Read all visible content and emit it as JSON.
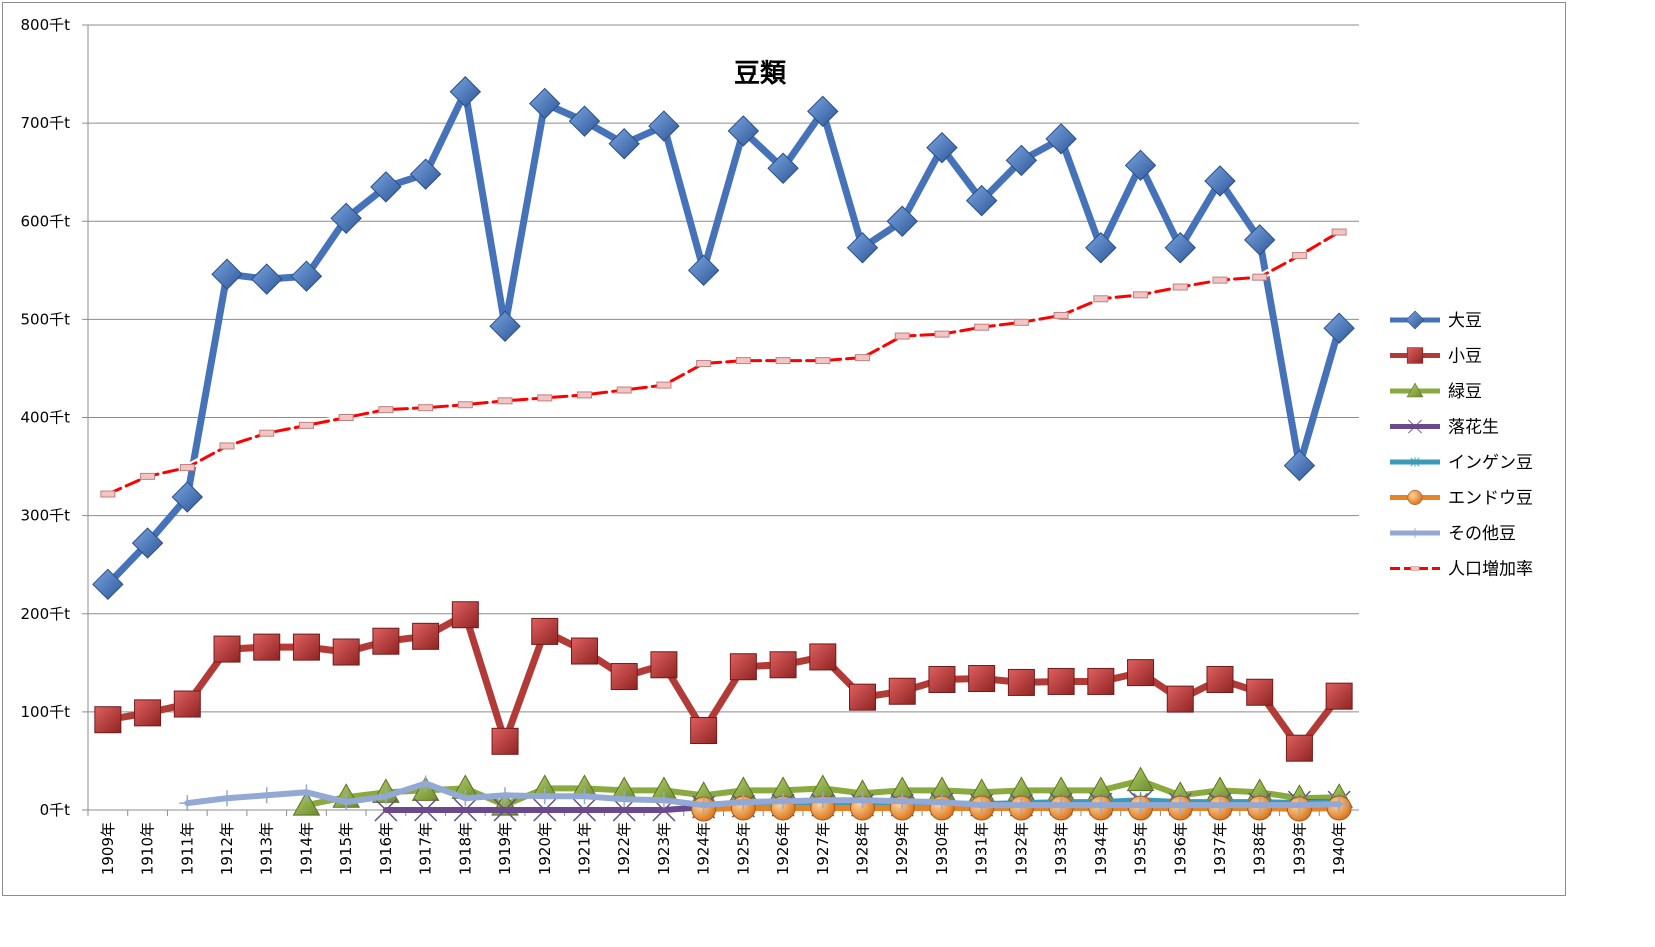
{
  "chart_data": {
    "type": "line",
    "title": "豆類",
    "xlabel": "",
    "ylabel": "",
    "ylim": [
      0,
      800
    ],
    "y_ticks": [
      "0千t",
      "100千t",
      "200千t",
      "300千t",
      "400千t",
      "500千t",
      "600千t",
      "700千t",
      "800千t"
    ],
    "grid": "horizontal",
    "legend_position": "right",
    "categories": [
      "1909年",
      "1910年",
      "1911年",
      "1912年",
      "1913年",
      "1914年",
      "1915年",
      "1916年",
      "1917年",
      "1918年",
      "1919年",
      "1920年",
      "1921年",
      "1922年",
      "1923年",
      "1924年",
      "1925年",
      "1926年",
      "1927年",
      "1928年",
      "1929年",
      "1930年",
      "1931年",
      "1932年",
      "1933年",
      "1934年",
      "1935年",
      "1936年",
      "1937年",
      "1938年",
      "1939年",
      "1940年"
    ],
    "series": [
      {
        "name": "大豆",
        "color": "#4572b8",
        "marker": "diamond",
        "values": [
          230,
          272,
          319,
          546,
          541,
          544,
          603,
          635,
          648,
          732,
          493,
          720,
          702,
          679,
          697,
          550,
          692,
          654,
          712,
          573,
          600,
          675,
          621,
          662,
          684,
          573,
          657,
          573,
          641,
          581,
          351,
          491
        ]
      },
      {
        "name": "小豆",
        "color": "#b23b38",
        "marker": "square",
        "values": [
          92,
          99,
          108,
          164,
          166,
          166,
          161,
          172,
          177,
          199,
          70,
          182,
          162,
          136,
          148,
          81,
          146,
          148,
          156,
          115,
          121,
          133,
          134,
          130,
          131,
          131,
          140,
          113,
          133,
          120,
          63,
          116
        ]
      },
      {
        "name": "緑豆",
        "color": "#8aa93f",
        "marker": "triangle",
        "values": [
          null,
          null,
          null,
          null,
          null,
          5,
          13,
          18,
          20,
          22,
          5,
          22,
          22,
          20,
          20,
          15,
          20,
          20,
          22,
          17,
          20,
          20,
          18,
          20,
          20,
          20,
          30,
          15,
          20,
          18,
          12,
          13
        ]
      },
      {
        "name": "落花生",
        "color": "#6a4a8c",
        "marker": "x",
        "values": [
          null,
          null,
          null,
          null,
          null,
          null,
          null,
          0,
          0,
          0,
          0,
          0,
          0,
          0,
          0,
          3,
          4,
          5,
          5,
          5,
          5,
          6,
          5,
          5,
          6,
          6,
          8,
          6,
          6,
          6,
          8,
          8
        ]
      },
      {
        "name": "インゲン豆",
        "color": "#3a9ab8",
        "marker": "asterisk",
        "values": [
          null,
          null,
          null,
          null,
          null,
          null,
          null,
          null,
          null,
          null,
          null,
          null,
          null,
          null,
          null,
          5,
          6,
          6,
          6,
          6,
          6,
          7,
          6,
          7,
          8,
          8,
          10,
          8,
          8,
          8,
          7,
          8
        ]
      },
      {
        "name": "エンドウ豆",
        "color": "#e58427",
        "marker": "circle",
        "values": [
          null,
          null,
          null,
          null,
          null,
          null,
          null,
          null,
          null,
          null,
          null,
          null,
          null,
          null,
          null,
          1,
          2,
          2,
          2,
          2,
          2,
          2,
          2,
          2,
          2,
          2,
          2,
          2,
          2,
          2,
          1,
          2
        ]
      },
      {
        "name": "その他豆",
        "color": "#93a9d4",
        "marker": "plus",
        "values": [
          null,
          null,
          7,
          12,
          15,
          18,
          8,
          14,
          27,
          12,
          15,
          14,
          14,
          11,
          10,
          5,
          8,
          9,
          10,
          10,
          9,
          8,
          5,
          5,
          5,
          5,
          5,
          5,
          5,
          5,
          5,
          6
        ]
      },
      {
        "name": "人口増加率",
        "color": "#ff0000",
        "marker": "dash",
        "style": "dashed",
        "values": [
          322,
          340,
          349,
          371,
          384,
          392,
          400,
          408,
          410,
          413,
          417,
          420,
          423,
          428,
          433,
          455,
          458,
          458,
          458,
          461,
          483,
          485,
          492,
          497,
          504,
          521,
          525,
          533,
          540,
          543,
          565,
          589
        ]
      }
    ]
  }
}
